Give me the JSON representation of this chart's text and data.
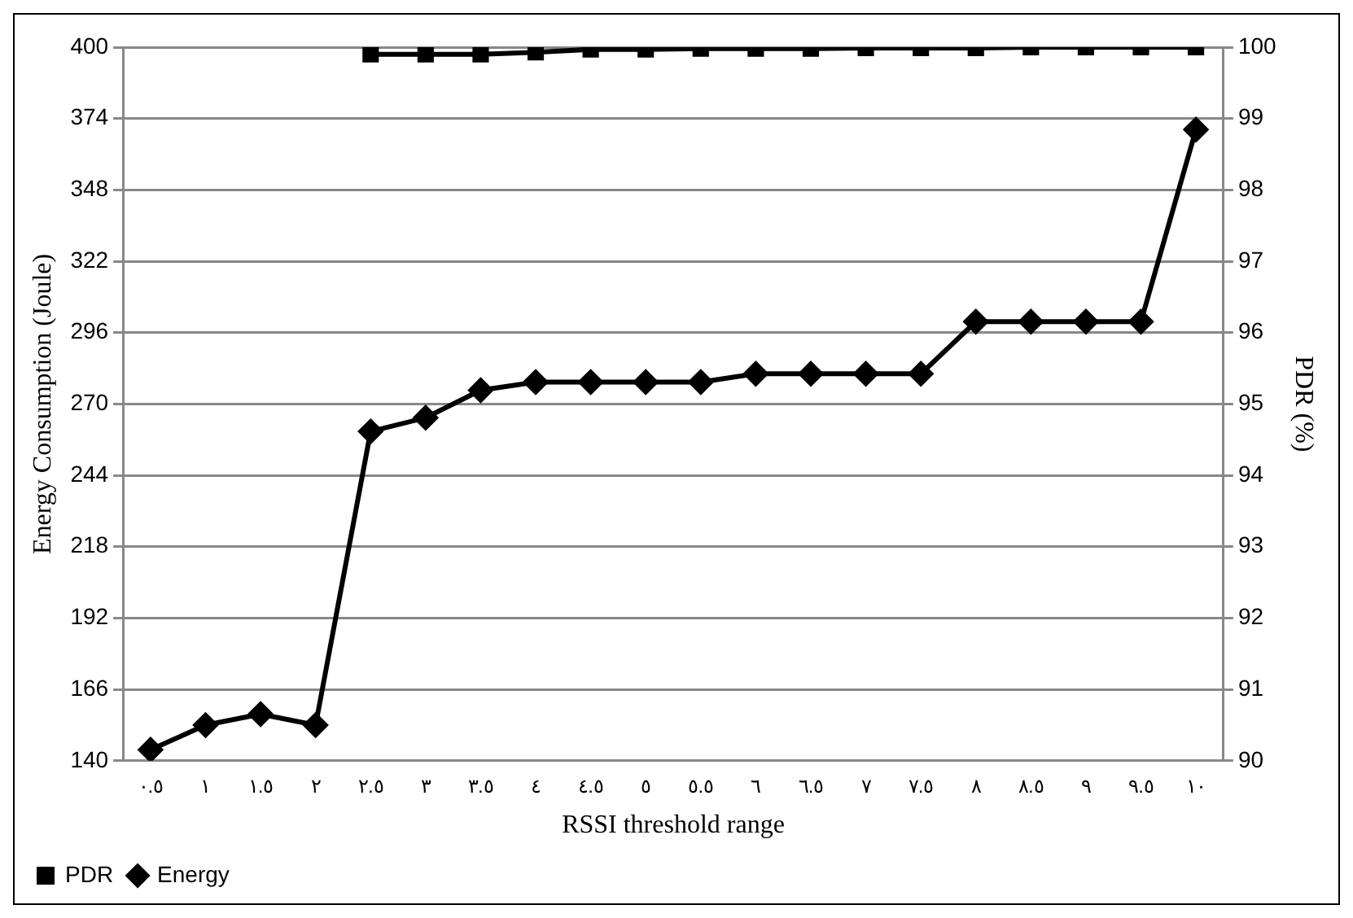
{
  "chart_data": {
    "type": "line",
    "xlabel": "RSSI threshold range",
    "ylabel": "Energy Consumption (Joule)",
    "y2label": "PDR (%)",
    "categories": [
      "٠.٥",
      "١",
      "١.٥",
      "٢",
      "٢.٥",
      "٣",
      "٣.٥",
      "٤",
      "٤.٥",
      "٥",
      "٥.٥",
      "٦",
      "٦.٥",
      "٧",
      "٧.٥",
      "٨",
      "٨.٥",
      "٩",
      "٩.٥",
      "١٠"
    ],
    "series": [
      {
        "name": "PDR",
        "color": "#000000",
        "axis": "y2",
        "marker": "square",
        "values": [
          null,
          null,
          null,
          null,
          99.9,
          99.9,
          99.9,
          99.93,
          99.97,
          99.97,
          99.98,
          99.98,
          99.98,
          99.99,
          99.99,
          99.99,
          100,
          100,
          100,
          100
        ]
      },
      {
        "name": "Energy",
        "color": "#000000",
        "axis": "y",
        "marker": "diamond",
        "values": [
          144,
          153,
          157,
          153,
          260,
          265,
          275,
          278,
          278,
          278,
          278,
          281,
          281,
          281,
          281,
          300,
          300,
          300,
          300,
          370
        ]
      }
    ],
    "ylim": [
      140,
      400
    ],
    "yticks": [
      140,
      166,
      192,
      218,
      244,
      270,
      296,
      322,
      348,
      374,
      400
    ],
    "y2lim": [
      90,
      100
    ],
    "y2ticks": [
      90,
      91,
      92,
      93,
      94,
      95,
      96,
      97,
      98,
      99,
      100
    ],
    "grid": "y",
    "legend": "bottom left",
    "line_style": "solid"
  }
}
